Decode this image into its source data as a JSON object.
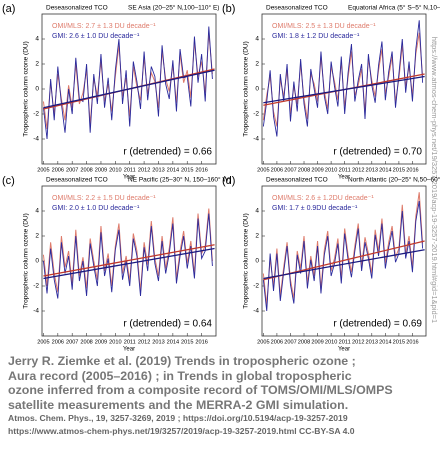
{
  "chart_data": [
    {
      "type": "line",
      "label": "(a)",
      "title": "Deseasonalized TCO",
      "region": "SE Asia (20–25° N,100–110° E)",
      "ylabel": "Tropospheric column ozone (DU)",
      "xlabel": "Year",
      "annotation": "r (detrended) = 0.66",
      "xlim": [
        2004.9,
        2017
      ],
      "ylim": [
        -6,
        6
      ],
      "yticks": [
        -4,
        -2,
        0,
        2,
        4
      ],
      "xticks": [
        2005,
        2006,
        2007,
        2008,
        2009,
        2010,
        2011,
        2012,
        2013,
        2014,
        2015,
        2016
      ],
      "x": [
        2005,
        2005.25,
        2005.5,
        2005.75,
        2006,
        2006.25,
        2006.5,
        2006.75,
        2007,
        2007.25,
        2007.5,
        2007.75,
        2008,
        2008.25,
        2008.5,
        2008.75,
        2009,
        2009.25,
        2009.5,
        2009.75,
        2010,
        2010.25,
        2010.5,
        2010.75,
        2011,
        2011.25,
        2011.5,
        2011.75,
        2012,
        2012.25,
        2012.5,
        2012.75,
        2013,
        2013.25,
        2013.5,
        2013.75,
        2014,
        2014.25,
        2014.5,
        2014.75,
        2015,
        2015.25,
        2015.5,
        2015.75,
        2016,
        2016.25,
        2016.5,
        2016.75
      ],
      "series": [
        {
          "name": "OMI/MLS: 2.7 ± 1.3 DU decade⁻¹",
          "color": "#de7b6b",
          "values": [
            -1.0,
            -3.2,
            0.5,
            -2.0,
            1.2,
            -0.8,
            -2.5,
            0.3,
            -1.5,
            2.0,
            -1.2,
            -0.3,
            1.5,
            -2.8,
            0.8,
            -0.5,
            2.2,
            -1.0,
            0.4,
            -1.8,
            1.0,
            3.5,
            -0.6,
            0.9,
            -2.2,
            1.8,
            0.2,
            -0.9,
            2.5,
            -0.4,
            1.3,
            0.6,
            -1.5,
            3.0,
            0.8,
            -0.2,
            1.9,
            -1.1,
            2.8,
            0.5,
            1.5,
            -0.7,
            3.8,
            1.0,
            2.2,
            -0.3,
            4.5,
            1.2
          ]
        },
        {
          "name": "GMI: 2.6 ± 1.0 DU decade⁻¹",
          "color": "#2b2a9c",
          "values": [
            -1.5,
            -4.0,
            0.8,
            -2.5,
            1.8,
            -1.2,
            -3.5,
            0.0,
            -2.0,
            2.5,
            -0.8,
            -1.0,
            2.0,
            -3.5,
            1.2,
            -1.2,
            2.8,
            -1.5,
            0.9,
            -2.5,
            1.5,
            4.0,
            -1.2,
            1.5,
            -3.0,
            2.2,
            0.6,
            -1.6,
            3.0,
            -0.9,
            1.8,
            1.0,
            -2.2,
            3.5,
            0.4,
            -0.8,
            2.3,
            -1.8,
            3.2,
            0.9,
            1.0,
            -1.4,
            4.2,
            0.5,
            2.8,
            -1.0,
            5.0,
            0.8
          ]
        }
      ],
      "trends": [
        {
          "color": "#c0392b",
          "x": [
            2005,
            2016.9
          ],
          "values": [
            -1.6,
            1.6
          ]
        },
        {
          "color": "#1a1a80",
          "x": [
            2005,
            2016.9
          ],
          "values": [
            -1.5,
            1.5
          ]
        }
      ]
    },
    {
      "type": "line",
      "label": "(b)",
      "title": "Deseasonalized TCO",
      "region": "Equatorial Africa (5° S–5° N,10–40° E)",
      "ylabel": "Tropospheric column ozone (DU)",
      "xlabel": "Year",
      "annotation": "r (detrended) = 0.70",
      "xlim": [
        2004.9,
        2017
      ],
      "ylim": [
        -6,
        6
      ],
      "yticks": [
        -4,
        -2,
        0,
        2,
        4
      ],
      "xticks": [
        2005,
        2006,
        2007,
        2008,
        2009,
        2010,
        2011,
        2012,
        2013,
        2014,
        2015,
        2016
      ],
      "x": [
        2005,
        2005.25,
        2005.5,
        2005.75,
        2006,
        2006.25,
        2006.5,
        2006.75,
        2007,
        2007.25,
        2007.5,
        2007.75,
        2008,
        2008.25,
        2008.5,
        2008.75,
        2009,
        2009.25,
        2009.5,
        2009.75,
        2010,
        2010.25,
        2010.5,
        2010.75,
        2011,
        2011.25,
        2011.5,
        2011.75,
        2012,
        2012.25,
        2012.5,
        2012.75,
        2013,
        2013.25,
        2013.5,
        2013.75,
        2014,
        2014.25,
        2014.5,
        2014.75,
        2015,
        2015.25,
        2015.5,
        2015.75,
        2016,
        2016.25,
        2016.5,
        2016.75
      ],
      "series": [
        {
          "name": "OMI/MLS: 2.5 ± 1.3 DU decade⁻¹",
          "color": "#de7b6b",
          "values": [
            -2.5,
            -0.5,
            1.0,
            -1.8,
            -3.0,
            0.8,
            -0.6,
            1.5,
            -2.0,
            0.2,
            -1.2,
            2.0,
            -0.8,
            -2.4,
            1.2,
            0.4,
            -1.0,
            2.5,
            -0.2,
            -1.6,
            1.8,
            0.6,
            -0.9,
            2.2,
            -1.4,
            0.9,
            3.0,
            -0.5,
            0.3,
            1.6,
            -1.8,
            2.4,
            0.7,
            -0.6,
            1.5,
            3.2,
            -0.4,
            1.0,
            2.6,
            -1.0,
            0.8,
            3.5,
            0.2,
            1.8,
            -0.5,
            2.8,
            4.5,
            1.0
          ]
        },
        {
          "name": "GMI: 1.8 ± 1.2 DU decade⁻¹",
          "color": "#2b2a9c",
          "values": [
            -3.0,
            -1.0,
            1.5,
            -2.2,
            -3.8,
            1.2,
            -1.0,
            2.0,
            -2.6,
            0.6,
            -1.8,
            2.4,
            -1.2,
            -3.0,
            1.6,
            0.0,
            -1.5,
            3.0,
            -0.6,
            -2.0,
            2.2,
            0.2,
            -1.4,
            2.6,
            -2.0,
            1.3,
            3.6,
            -1.0,
            0.7,
            2.0,
            -2.4,
            2.8,
            0.3,
            -1.1,
            1.9,
            3.8,
            -0.9,
            1.4,
            3.0,
            -1.5,
            1.2,
            4.0,
            -0.3,
            2.2,
            -1.0,
            3.2,
            5.5,
            0.5
          ]
        }
      ],
      "trends": [
        {
          "color": "#c0392b",
          "x": [
            2005,
            2016.9
          ],
          "values": [
            -1.3,
            1.2
          ]
        },
        {
          "color": "#1a1a80",
          "x": [
            2005,
            2016.9
          ],
          "values": [
            -1.1,
            1.0
          ]
        }
      ]
    },
    {
      "type": "line",
      "label": "(c)",
      "title": "Deseasonalized TCO",
      "region": "NE Pacific (25–30° N, 150–160° W)",
      "ylabel": "Tropospheric column ozone (DU)",
      "xlabel": "Year",
      "annotation": "r (detrended) = 0.64",
      "xlim": [
        2004.9,
        2017
      ],
      "ylim": [
        -6,
        6
      ],
      "yticks": [
        -4,
        -2,
        0,
        2,
        4
      ],
      "xticks": [
        2005,
        2006,
        2007,
        2008,
        2009,
        2010,
        2011,
        2012,
        2013,
        2014,
        2015,
        2016
      ],
      "x": [
        2005,
        2005.25,
        2005.5,
        2005.75,
        2006,
        2006.25,
        2006.5,
        2006.75,
        2007,
        2007.25,
        2007.5,
        2007.75,
        2008,
        2008.25,
        2008.5,
        2008.75,
        2009,
        2009.25,
        2009.5,
        2009.75,
        2010,
        2010.25,
        2010.5,
        2010.75,
        2011,
        2011.25,
        2011.5,
        2011.75,
        2012,
        2012.25,
        2012.5,
        2012.75,
        2013,
        2013.25,
        2013.5,
        2013.75,
        2014,
        2014.25,
        2014.5,
        2014.75,
        2015,
        2015.25,
        2015.5,
        2015.75,
        2016,
        2016.25,
        2016.5,
        2016.75
      ],
      "series": [
        {
          "name": "OMI/MLS: 2.2 ± 1.5 DU decade⁻¹",
          "color": "#de7b6b",
          "values": [
            0.5,
            -2.0,
            1.5,
            -1.0,
            -2.5,
            2.0,
            -0.5,
            0.8,
            -1.8,
            2.5,
            -1.2,
            0.3,
            -2.2,
            1.8,
            0.0,
            -1.5,
            2.8,
            -0.8,
            0.6,
            -2.0,
            1.2,
            3.0,
            -1.0,
            0.4,
            -1.6,
            2.2,
            0.8,
            -2.4,
            1.5,
            -0.3,
            3.2,
            0.2,
            -1.2,
            2.0,
            -0.6,
            1.0,
            3.5,
            -1.4,
            0.8,
            2.4,
            -0.2,
            1.6,
            -1.0,
            3.8,
            0.6,
            1.2,
            4.2,
            0.0
          ]
        },
        {
          "name": "GMI: 2.0 ± 1.0 DU decade⁻¹",
          "color": "#2b2a9c",
          "values": [
            0.0,
            -2.6,
            1.0,
            -1.5,
            -3.0,
            1.5,
            -1.0,
            0.4,
            -2.3,
            2.0,
            -1.6,
            0.0,
            -2.8,
            1.4,
            -0.4,
            -2.0,
            2.3,
            -1.2,
            0.2,
            -2.5,
            0.9,
            2.5,
            -1.5,
            0.0,
            -2.0,
            1.8,
            0.4,
            -2.8,
            1.1,
            -0.8,
            2.8,
            -0.2,
            -1.6,
            1.6,
            -1.0,
            0.6,
            3.0,
            -1.8,
            0.4,
            2.0,
            -0.6,
            1.2,
            -1.4,
            3.4,
            0.2,
            0.8,
            3.8,
            -0.4
          ]
        }
      ],
      "trends": [
        {
          "color": "#c0392b",
          "x": [
            2005,
            2016.9
          ],
          "values": [
            -1.2,
            1.3
          ]
        },
        {
          "color": "#1a1a80",
          "x": [
            2005,
            2016.9
          ],
          "values": [
            -1.4,
            1.0
          ]
        }
      ]
    },
    {
      "type": "line",
      "label": "(d)",
      "title": "Deseasonalized TCO",
      "region": "North Atlantic (20–25° N,50–60° W)",
      "ylabel": "Tropospheric column ozone (DU)",
      "xlabel": "Year",
      "annotation": "r (detrended) = 0.69",
      "xlim": [
        2004.9,
        2017
      ],
      "ylim": [
        -6,
        6
      ],
      "yticks": [
        -4,
        -2,
        0,
        2,
        4
      ],
      "xticks": [
        2005,
        2006,
        2007,
        2008,
        2009,
        2010,
        2011,
        2012,
        2013,
        2014,
        2015,
        2016
      ],
      "x": [
        2005,
        2005.25,
        2005.5,
        2005.75,
        2006,
        2006.25,
        2006.5,
        2006.75,
        2007,
        2007.25,
        2007.5,
        2007.75,
        2008,
        2008.25,
        2008.5,
        2008.75,
        2009,
        2009.25,
        2009.5,
        2009.75,
        2010,
        2010.25,
        2010.5,
        2010.75,
        2011,
        2011.25,
        2011.5,
        2011.75,
        2012,
        2012.25,
        2012.5,
        2012.75,
        2013,
        2013.25,
        2013.5,
        2013.75,
        2014,
        2014.25,
        2014.5,
        2014.75,
        2015,
        2015.25,
        2015.5,
        2015.75,
        2016,
        2016.25,
        2016.5,
        2016.75
      ],
      "series": [
        {
          "name": "OMI/MLS: 2.6 ± 1.2DU decade⁻¹",
          "color": "#de7b6b",
          "values": [
            -1.0,
            -3.5,
            0.2,
            -2.0,
            1.0,
            -2.8,
            -0.5,
            1.5,
            -1.5,
            -3.0,
            0.8,
            -0.6,
            2.0,
            -1.8,
            0.4,
            -1.2,
            1.6,
            -2.2,
            0.9,
            2.4,
            -0.8,
            0.2,
            1.8,
            -1.4,
            2.6,
            0.5,
            -0.9,
            1.2,
            3.0,
            -0.4,
            1.9,
            0.6,
            -1.0,
            2.5,
            0.8,
            3.4,
            -0.2,
            1.5,
            2.8,
            0.3,
            1.0,
            4.5,
            0.6,
            2.0,
            -0.5,
            3.6,
            5.5,
            1.4
          ]
        },
        {
          "name": "GMI: 1.7 ± 0.9DU decade⁻¹",
          "color": "#2b2a9c",
          "values": [
            -1.5,
            -4.0,
            0.6,
            -2.4,
            0.6,
            -3.2,
            -0.9,
            1.2,
            -1.9,
            -3.4,
            0.5,
            -1.0,
            1.6,
            -2.2,
            0.1,
            -1.6,
            1.2,
            -2.6,
            0.5,
            2.0,
            -1.2,
            -0.2,
            1.4,
            -1.8,
            2.2,
            0.1,
            -1.3,
            0.8,
            2.6,
            -0.8,
            1.5,
            0.2,
            -1.4,
            2.1,
            0.4,
            3.0,
            -0.6,
            1.1,
            2.4,
            -0.1,
            0.6,
            4.0,
            0.2,
            1.6,
            -0.9,
            3.2,
            4.8,
            1.0
          ]
        }
      ],
      "trends": [
        {
          "color": "#c0392b",
          "x": [
            2005,
            2016.9
          ],
          "values": [
            -1.5,
            1.6
          ]
        },
        {
          "color": "#1a1a80",
          "x": [
            2005,
            2016.9
          ],
          "values": [
            -1.4,
            0.9
          ]
        }
      ]
    }
  ],
  "watermark": "https://www.atmos-chem-phys.net/19/3257/2019/acp-19-3257-2019.html#gid=1&pid=1",
  "caption": [
    "Jerry R. Ziemke et al. (2019) Trends in tropospheric ozone ;",
    "Aura record (2005–2016) ; in Trends in global tropospheric",
    "ozone inferred from a composite record of TOMS/OMI/MLS/OMPS",
    "satellite measurements and the MERRA-2 GMI simulation."
  ],
  "source": [
    "Atmos. Chem. Phys., 19, 3257-3269, 2019 ; https://doi.org/10.5194/acp-19-3257-2019",
    "https://www.atmos-chem-phys.net/19/3257/2019/acp-19-3257-2019.html CC-BY-SA 4.0"
  ]
}
